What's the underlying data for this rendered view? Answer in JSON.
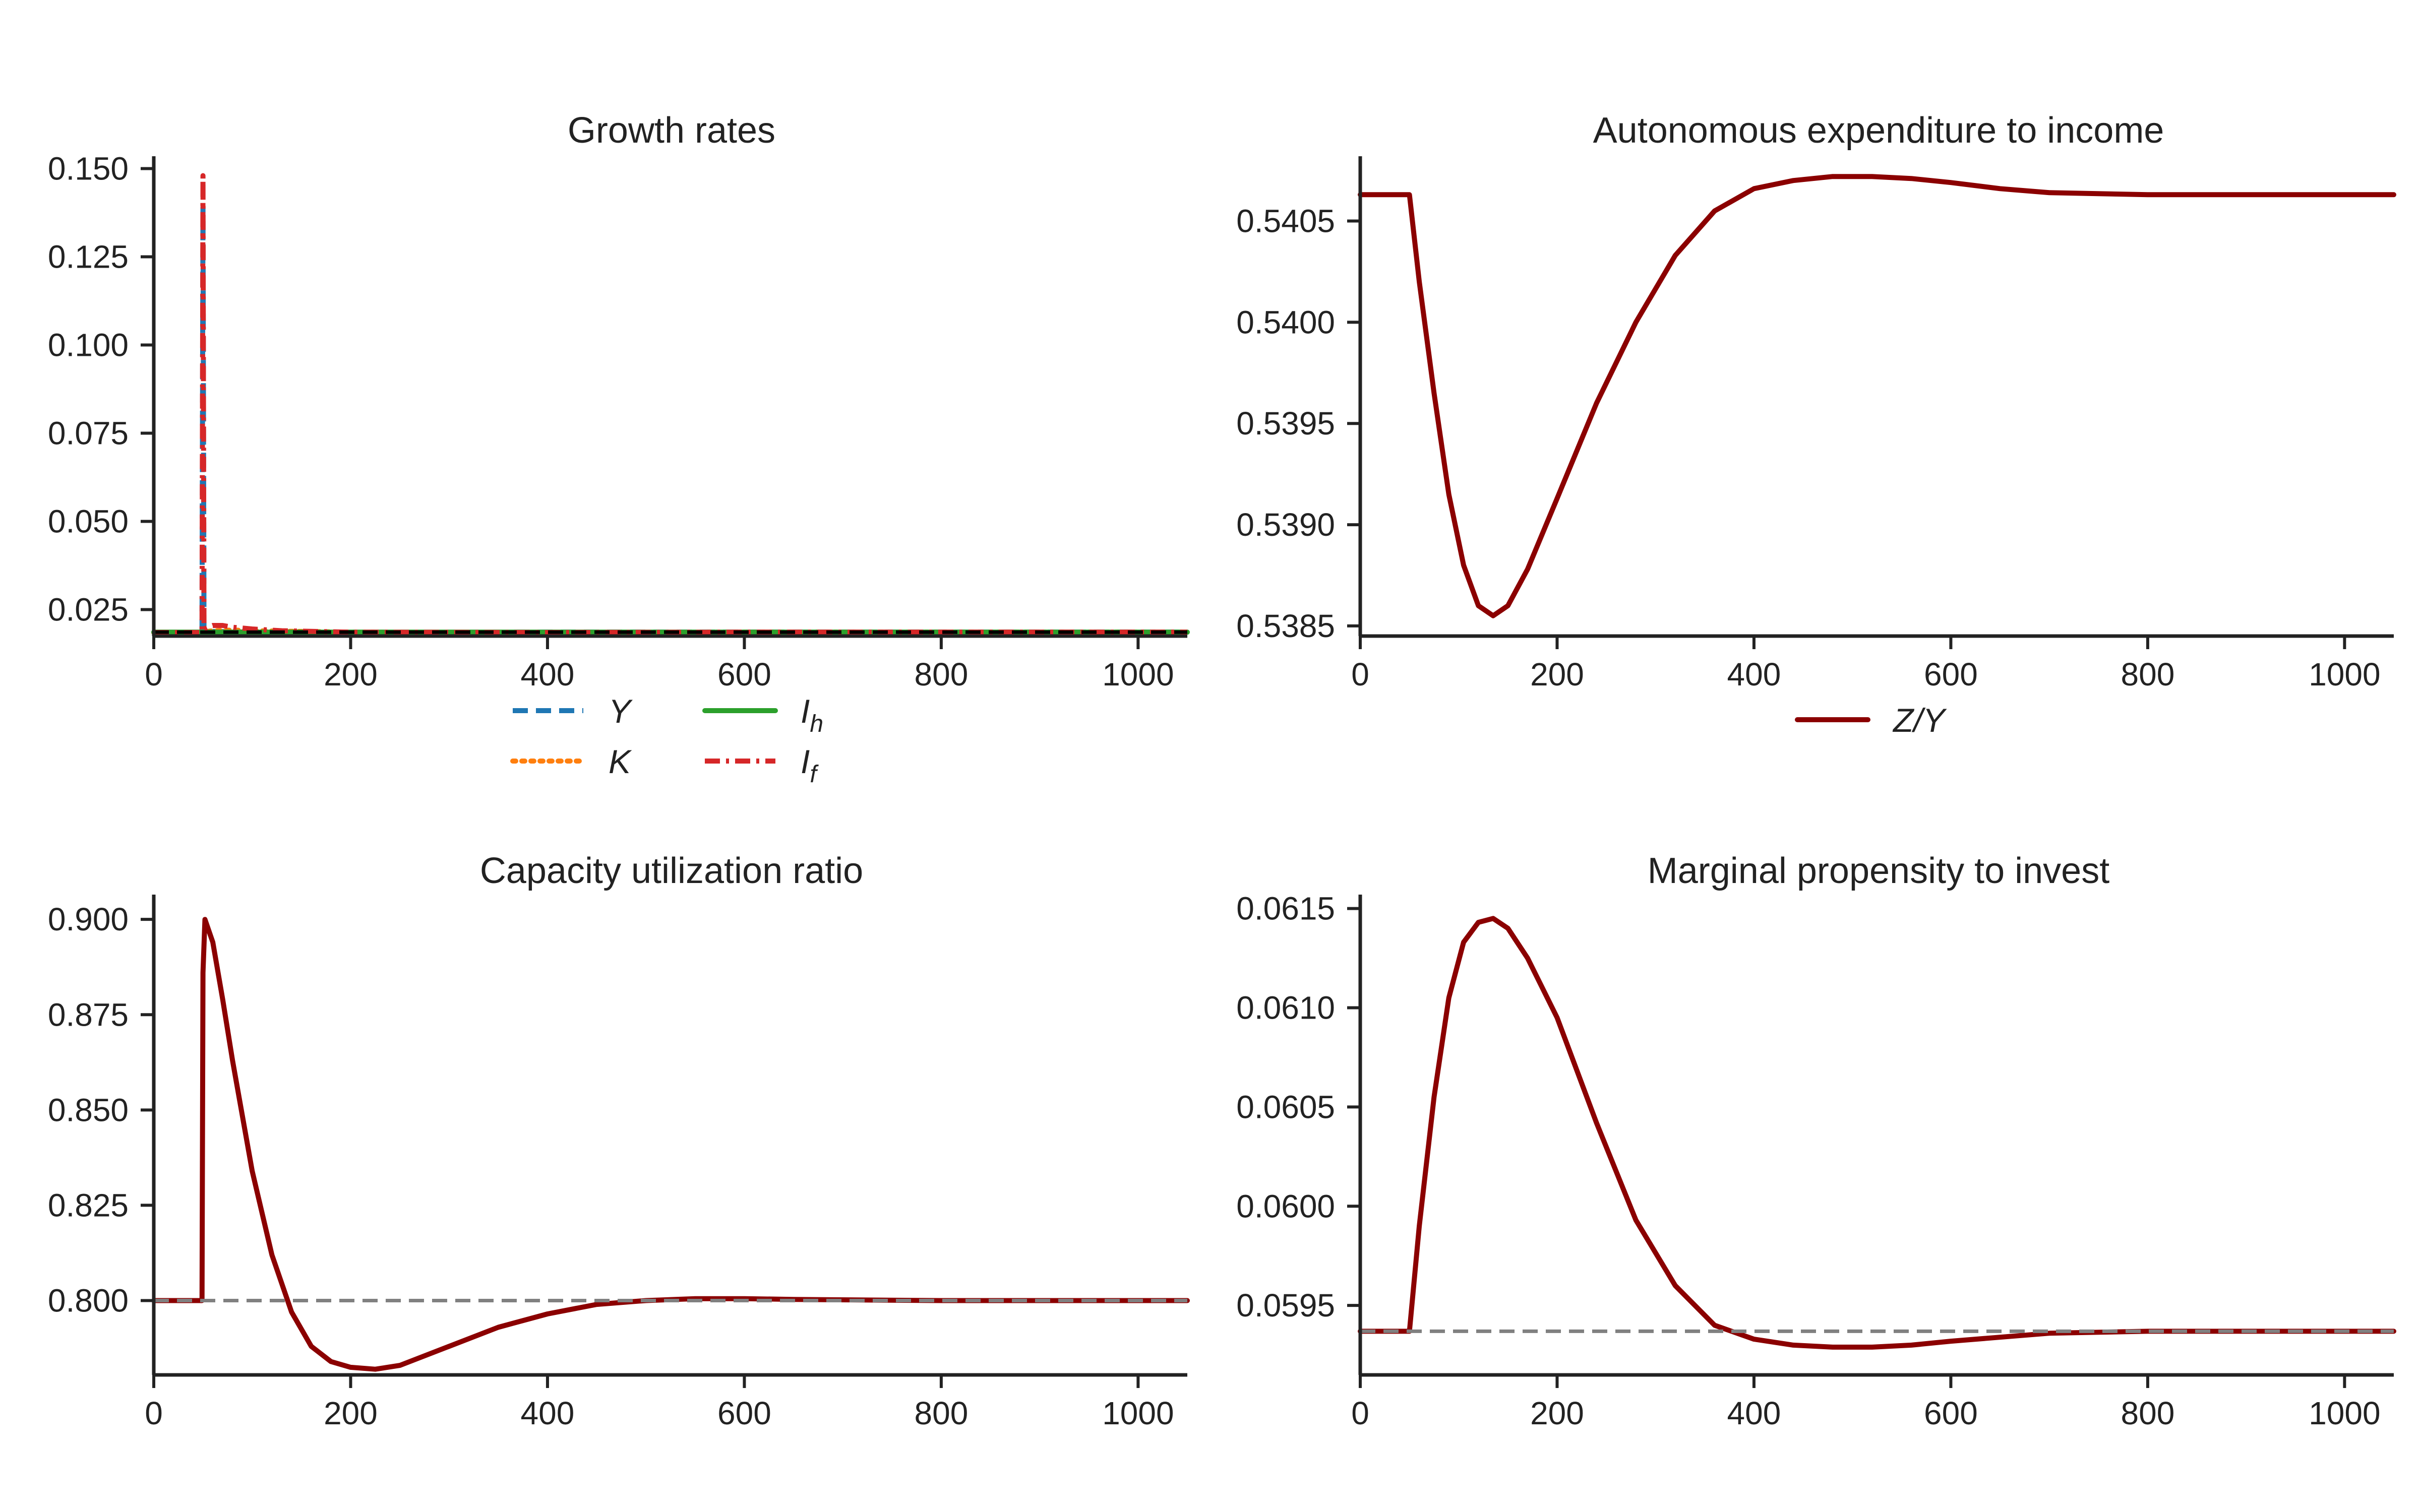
{
  "chart_data": [
    {
      "type": "line",
      "title": "Growth rates",
      "xlabel": "",
      "ylabel": "",
      "xlim": [
        0,
        1050
      ],
      "ylim": [
        0.0175,
        0.1535
      ],
      "xticks": [
        "0",
        "200",
        "400",
        "600",
        "800",
        "1000"
      ],
      "yticks": [
        "0.025",
        "0.050",
        "0.075",
        "0.100",
        "0.125",
        "0.150"
      ],
      "grid": false,
      "legend_position": "bottom",
      "series": [
        {
          "name": "Y",
          "color": "#1f77b4",
          "style": "dashed",
          "x": [
            0,
            49,
            50,
            51,
            53,
            56,
            60,
            80,
            100,
            200,
            400,
            600,
            800,
            1000,
            1050
          ],
          "y": [
            0.0185,
            0.0185,
            0.139,
            0.0195,
            0.0192,
            0.019,
            0.0188,
            0.0187,
            0.0186,
            0.0185,
            0.0186,
            0.0186,
            0.0186,
            0.0186,
            0.0186
          ]
        },
        {
          "name": "K",
          "color": "#ff7f0e",
          "style": "dotted",
          "x": [
            0,
            49,
            50,
            60,
            80,
            100,
            200,
            400,
            600,
            800,
            1000,
            1050
          ],
          "y": [
            0.0185,
            0.0185,
            0.0186,
            0.019,
            0.0192,
            0.019,
            0.0186,
            0.0185,
            0.0186,
            0.0186,
            0.0186,
            0.0186
          ]
        },
        {
          "name": "I_h",
          "color": "#2ca02c",
          "style": "solid",
          "x": [
            0,
            49,
            50,
            51,
            100,
            400,
            1050
          ],
          "y": [
            0.0186,
            0.0186,
            0.0186,
            0.0186,
            0.0186,
            0.0186,
            0.0186
          ]
        },
        {
          "name": "I_f",
          "color": "#d62728",
          "style": "dashdot",
          "x": [
            0,
            49,
            50,
            51,
            55,
            60,
            70,
            80,
            100,
            130,
            200,
            400,
            600,
            800,
            1000,
            1050
          ],
          "y": [
            0.0185,
            0.0185,
            0.148,
            0.0195,
            0.02,
            0.0205,
            0.0205,
            0.02,
            0.0195,
            0.019,
            0.0186,
            0.0185,
            0.0186,
            0.0186,
            0.0186,
            0.0186
          ]
        }
      ],
      "reference_line": {
        "y": 0.0186,
        "color": "#000000",
        "style": "dashed"
      }
    },
    {
      "type": "line",
      "title": "Autonomous expenditure to income",
      "xlabel": "",
      "ylabel": "",
      "xlim": [
        0,
        1050
      ],
      "ylim": [
        0.53845,
        0.54082
      ],
      "xticks": [
        "0",
        "200",
        "400",
        "600",
        "800",
        "1000"
      ],
      "yticks": [
        "0.5385",
        "0.5390",
        "0.5395",
        "0.5400",
        "0.5405"
      ],
      "grid": false,
      "legend_position": "bottom",
      "series": [
        {
          "name": "Z/Y",
          "color": "#8b0000",
          "style": "solid",
          "x": [
            0,
            50,
            60,
            75,
            90,
            105,
            120,
            135,
            150,
            170,
            200,
            240,
            280,
            320,
            360,
            400,
            440,
            480,
            520,
            560,
            600,
            650,
            700,
            800,
            900,
            1000,
            1050
          ],
          "y": [
            0.54063,
            0.54063,
            0.5402,
            0.53965,
            0.53915,
            0.5388,
            0.5386,
            0.53855,
            0.5386,
            0.53878,
            0.53913,
            0.5396,
            0.54,
            0.54033,
            0.54055,
            0.54066,
            0.5407,
            0.54072,
            0.54072,
            0.54071,
            0.54069,
            0.54066,
            0.54064,
            0.54063,
            0.54063,
            0.54063,
            0.54063
          ]
        }
      ]
    },
    {
      "type": "line",
      "title": "Capacity utilization ratio",
      "xlabel": "",
      "ylabel": "",
      "xlim": [
        0,
        1050
      ],
      "ylim": [
        0.7805,
        0.9065
      ],
      "xticks": [
        "0",
        "200",
        "400",
        "600",
        "800",
        "1000"
      ],
      "yticks": [
        "0.800",
        "0.825",
        "0.850",
        "0.875",
        "0.900"
      ],
      "grid": false,
      "series": [
        {
          "name": "",
          "color": "#8b0000",
          "style": "solid",
          "x": [
            0,
            49,
            50,
            52,
            60,
            70,
            80,
            100,
            120,
            140,
            160,
            180,
            200,
            225,
            250,
            300,
            350,
            400,
            450,
            500,
            550,
            600,
            650,
            700,
            800,
            900,
            1000,
            1050
          ],
          "y": [
            0.8,
            0.8,
            0.886,
            0.9,
            0.894,
            0.879,
            0.863,
            0.834,
            0.812,
            0.797,
            0.788,
            0.784,
            0.7825,
            0.782,
            0.783,
            0.788,
            0.793,
            0.7965,
            0.799,
            0.8,
            0.8005,
            0.8005,
            0.8003,
            0.8002,
            0.8,
            0.8,
            0.8,
            0.8
          ]
        }
      ],
      "reference_line": {
        "y": 0.8,
        "color": "#808080",
        "style": "dashed"
      }
    },
    {
      "type": "line",
      "title": "Marginal propensity to invest",
      "xlabel": "",
      "ylabel": "",
      "xlim": [
        0,
        1050
      ],
      "ylim": [
        0.05915,
        0.06157
      ],
      "xticks": [
        "0",
        "200",
        "400",
        "600",
        "800",
        "1000"
      ],
      "yticks": [
        "0.0595",
        "0.0600",
        "0.0605",
        "0.0610",
        "0.0615"
      ],
      "grid": false,
      "series": [
        {
          "name": "",
          "color": "#8b0000",
          "style": "solid",
          "x": [
            0,
            50,
            60,
            75,
            90,
            105,
            120,
            135,
            150,
            170,
            200,
            240,
            280,
            320,
            360,
            400,
            440,
            480,
            520,
            560,
            600,
            650,
            700,
            800,
            900,
            1000,
            1050
          ],
          "y": [
            0.05937,
            0.05937,
            0.0599,
            0.06055,
            0.06105,
            0.06133,
            0.06143,
            0.06145,
            0.0614,
            0.06125,
            0.06095,
            0.06042,
            0.05993,
            0.0596,
            0.0594,
            0.05933,
            0.0593,
            0.05929,
            0.05929,
            0.0593,
            0.05932,
            0.05934,
            0.05936,
            0.05937,
            0.05937,
            0.05937,
            0.05937
          ]
        }
      ],
      "reference_line": {
        "y": 0.05937,
        "color": "#808080",
        "style": "dashed"
      }
    }
  ]
}
